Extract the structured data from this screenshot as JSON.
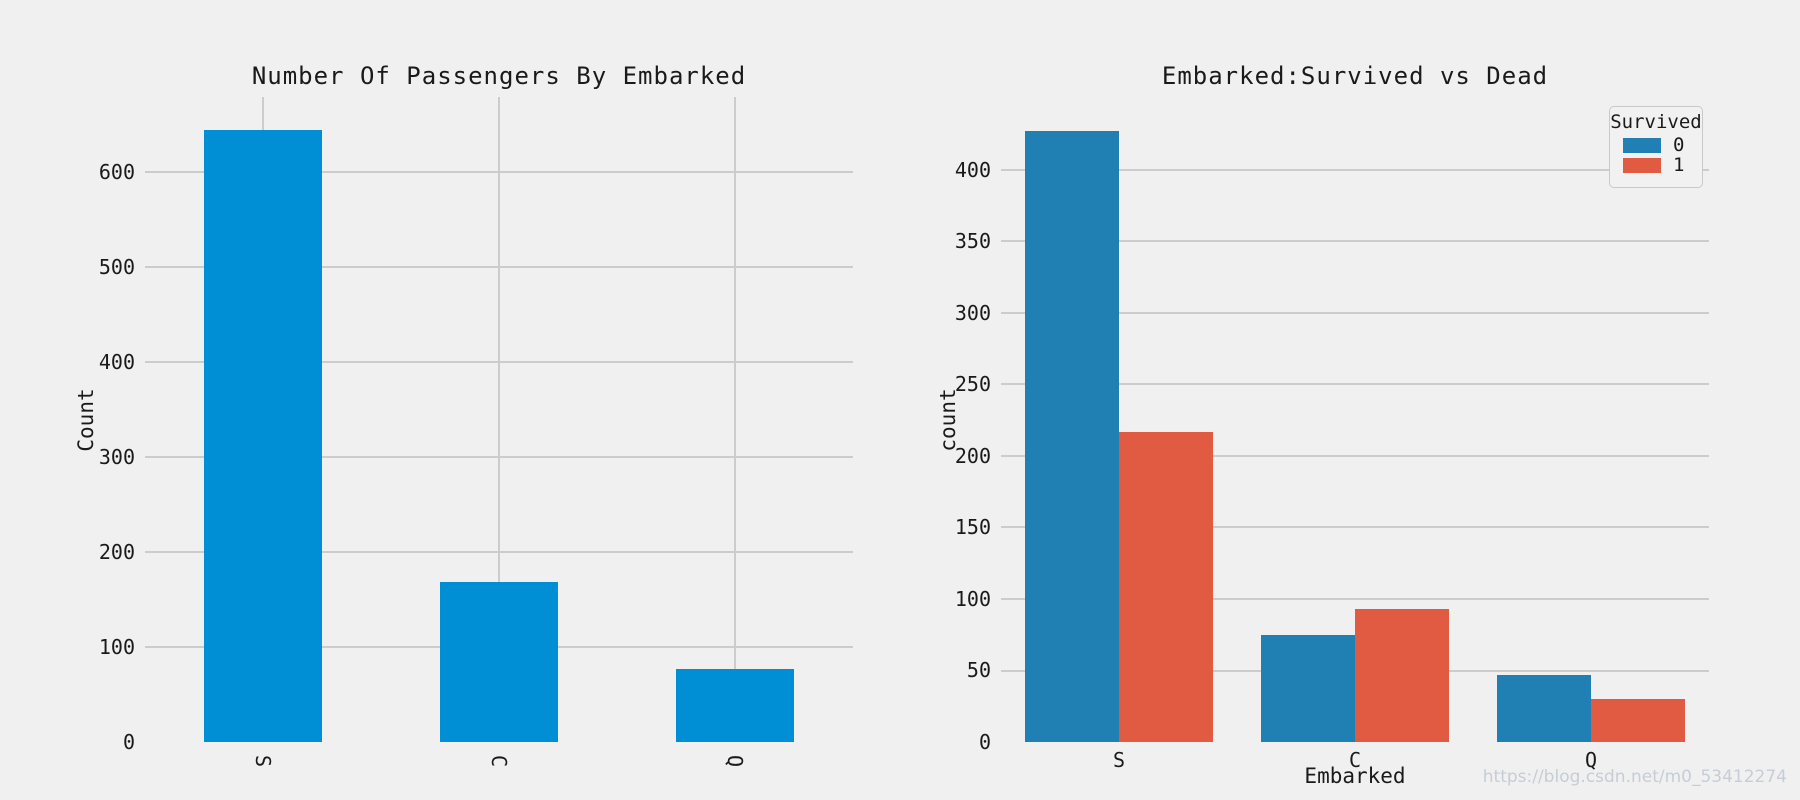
{
  "figure": {
    "background": "#f0f0f0",
    "watermark": "https://blog.csdn.net/m0_53412274"
  },
  "chart_data": [
    {
      "type": "bar",
      "title": "Number Of Passengers By Embarked",
      "xlabel": "",
      "ylabel": "Count",
      "categories": [
        "S",
        "C",
        "Q"
      ],
      "values": [
        644,
        168,
        77
      ],
      "yticks": [
        0,
        100,
        200,
        300,
        400,
        500,
        600
      ],
      "ylim": [
        0,
        679
      ],
      "bar_color": "#008fd5",
      "grid": "horizontal gridlines plus vertical gridline at each category",
      "x_tick_rotation": 90,
      "legend": null
    },
    {
      "type": "bar",
      "title": "Embarked:Survived vs Dead",
      "xlabel": "Embarked",
      "ylabel": "count",
      "categories": [
        "S",
        "C",
        "Q"
      ],
      "series": [
        {
          "name": "0",
          "color": "#2080b4",
          "values": [
            427,
            75,
            47
          ]
        },
        {
          "name": "1",
          "color": "#e15b43",
          "values": [
            217,
            93,
            30
          ]
        }
      ],
      "yticks": [
        0,
        50,
        100,
        150,
        200,
        250,
        300,
        350,
        400
      ],
      "ylim": [
        0,
        451
      ],
      "grid": "horizontal gridlines only",
      "x_tick_rotation": 0,
      "legend": {
        "title": "Survived",
        "position": "upper right"
      }
    }
  ]
}
